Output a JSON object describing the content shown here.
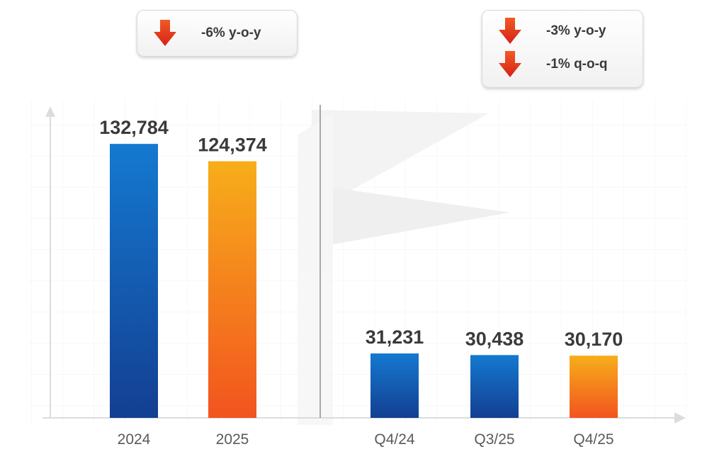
{
  "colors": {
    "blue_top": "#1479D0",
    "blue_bottom": "#133F92",
    "orange_top": "#F7AE1A",
    "orange_bottom": "#F2541F",
    "arrow_top": "#F15A24",
    "arrow_bottom": "#D62217",
    "label_text": "#3a3a3a",
    "tick_text": "#5a5a5a"
  },
  "badges": {
    "left": {
      "rows": [
        {
          "icon": "down-arrow-icon",
          "text": "-6% y-o-y"
        }
      ]
    },
    "right": {
      "rows": [
        {
          "icon": "down-arrow-icon",
          "text": "-3% y-o-y"
        },
        {
          "icon": "down-arrow-icon",
          "text": "-1% q-o-q"
        }
      ]
    }
  },
  "chart_data": [
    {
      "type": "bar",
      "categories": [
        "2024",
        "2025"
      ],
      "values": [
        132784,
        124374
      ],
      "value_labels": [
        "132,784",
        "124,374"
      ],
      "bar_colors": [
        "blue",
        "orange"
      ],
      "ylim": [
        0,
        150000
      ],
      "grid": true,
      "title": "",
      "xlabel": "",
      "ylabel": ""
    },
    {
      "type": "bar",
      "categories": [
        "Q4/24",
        "Q3/25",
        "Q4/25"
      ],
      "values": [
        31231,
        30438,
        30170
      ],
      "value_labels": [
        "31,231",
        "30,438",
        "30,170"
      ],
      "bar_colors": [
        "blue",
        "blue",
        "orange"
      ],
      "ylim": [
        0,
        150000
      ],
      "grid": true,
      "title": "",
      "xlabel": "",
      "ylabel": ""
    }
  ]
}
